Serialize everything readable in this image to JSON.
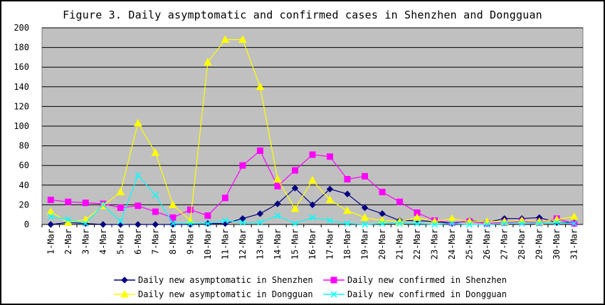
{
  "chart_data": {
    "type": "line",
    "title": "Figure 3. Daily asymptomatic and confirmed cases in Shenzhen and Dongguan",
    "xlabel": "",
    "ylabel": "",
    "ylim": [
      0,
      200
    ],
    "yticks": [
      0,
      20,
      40,
      60,
      80,
      100,
      120,
      140,
      160,
      180,
      200
    ],
    "grid": true,
    "legend_position": "bottom",
    "categories": [
      "1-Mar",
      "2-Mar",
      "3-Mar",
      "4-Mar",
      "5-Mar",
      "6-Mar",
      "7-Mar",
      "8-Mar",
      "9-Mar",
      "10-Mar",
      "11-Mar",
      "12-Mar",
      "13-Mar",
      "14-Mar",
      "15-Mar",
      "16-Mar",
      "17-Mar",
      "18-Mar",
      "19-Mar",
      "20-Mar",
      "21-Mar",
      "22-Mar",
      "23-Mar",
      "24-Mar",
      "25-Mar",
      "26-Mar",
      "27-Mar",
      "28-Mar",
      "29-Mar",
      "30-Mar",
      "31-Mar"
    ],
    "series": [
      {
        "name": "Daily new asymptomatic in Shenzhen",
        "color": "#000080",
        "marker": "diamond",
        "values": [
          0,
          2,
          1,
          0,
          0,
          0,
          0,
          0,
          0,
          1,
          1,
          6,
          11,
          21,
          37,
          20,
          36,
          31,
          17,
          11,
          4,
          4,
          3,
          1,
          4,
          2,
          6,
          6,
          7,
          2,
          2
        ]
      },
      {
        "name": "Daily new confirmed in Shenzhen",
        "color": "#FF00FF",
        "marker": "square",
        "values": [
          25,
          23,
          22,
          21,
          17,
          19,
          13,
          7,
          15,
          9,
          27,
          60,
          75,
          39,
          55,
          71,
          69,
          46,
          49,
          33,
          23,
          12,
          4,
          2,
          3,
          1,
          2,
          3,
          2,
          6,
          1
        ]
      },
      {
        "name": "Daily new asymptomatic in Dongguan",
        "color": "#FFFF00",
        "marker": "triangle",
        "values": [
          13,
          2,
          5,
          19,
          33,
          103,
          73,
          20,
          4,
          165,
          188,
          188,
          140,
          46,
          16,
          45,
          25,
          14,
          7,
          4,
          3,
          7,
          3,
          6,
          3,
          3,
          3,
          4,
          3,
          5,
          8
        ]
      },
      {
        "name": "Daily new confirmed in Dongguan",
        "color": "#00FFFF",
        "marker": "x",
        "values": [
          8,
          5,
          1,
          20,
          3,
          50,
          30,
          1,
          1,
          1,
          4,
          2,
          2,
          9,
          1,
          7,
          4,
          1,
          0,
          1,
          1,
          1,
          0,
          1,
          0,
          0,
          1,
          1,
          1,
          2,
          1
        ]
      }
    ]
  }
}
